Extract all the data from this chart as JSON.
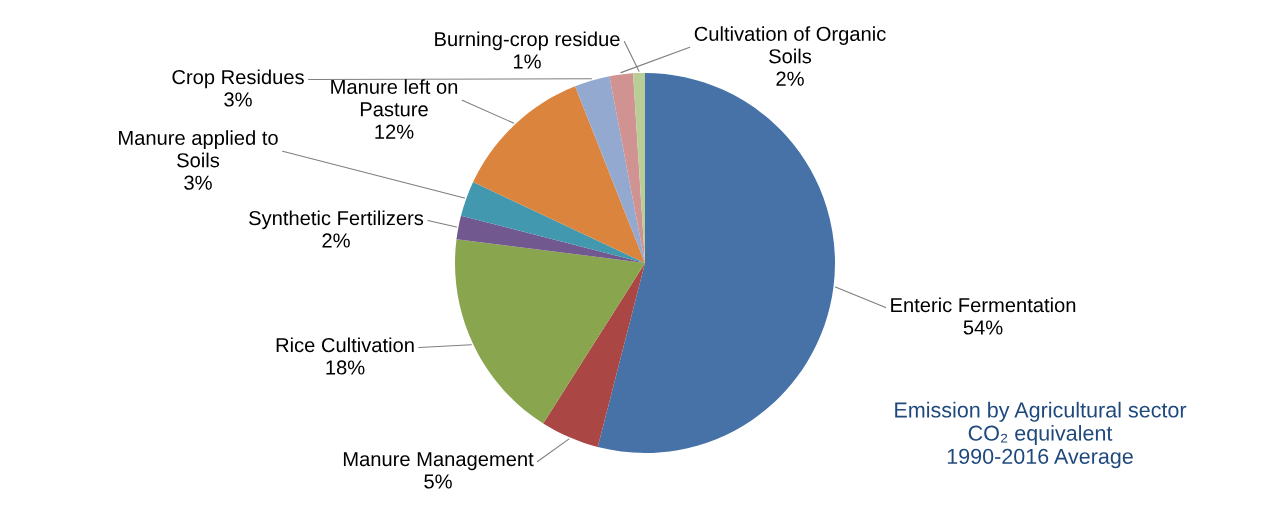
{
  "chart_data": {
    "type": "pie",
    "categories": [
      "Enteric Fermentation",
      "Manure Management",
      "Rice Cultivation",
      "Synthetic Fertilizers",
      "Manure applied to\nSoils",
      "Manure left on\nPasture",
      "Crop Residues",
      "Cultivation of Organic\nSoils",
      "Burning-crop residue"
    ],
    "values": [
      54,
      5,
      18,
      2,
      3,
      12,
      3,
      2,
      1
    ],
    "value_labels": [
      "54%",
      "5%",
      "18%",
      "2%",
      "3%",
      "12%",
      "3%",
      "2%",
      "1%"
    ],
    "colors": [
      "#4672a8",
      "#aa4643",
      "#89a54e",
      "#71588f",
      "#4198af",
      "#db843d",
      "#93a9cf",
      "#d19392",
      "#b9cd96"
    ],
    "annotations": [
      "Emission by Agricultural sector\nCO₂ equivalent\n1990-2016 Average"
    ],
    "legend": false
  }
}
